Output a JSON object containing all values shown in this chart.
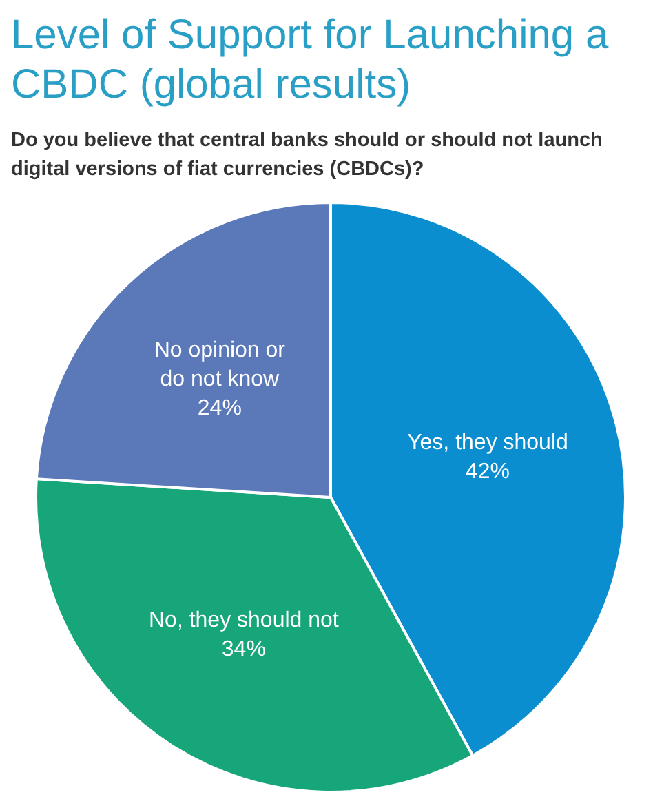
{
  "chart_data": {
    "type": "pie",
    "title": "Level of Support for Launching a CBDC (global results)",
    "subtitle": "Do you believe that central banks should or should not launch digital versions of fiat currencies (CBDCs)?",
    "categories": [
      "Yes, they should",
      "No, they should not",
      "No opinion or do not know"
    ],
    "values": [
      42,
      34,
      24
    ],
    "colors": [
      "#0a8ed0",
      "#17a57a",
      "#5b78b8"
    ],
    "value_labels": [
      "42%",
      "34%",
      "24%"
    ],
    "legend": false
  }
}
